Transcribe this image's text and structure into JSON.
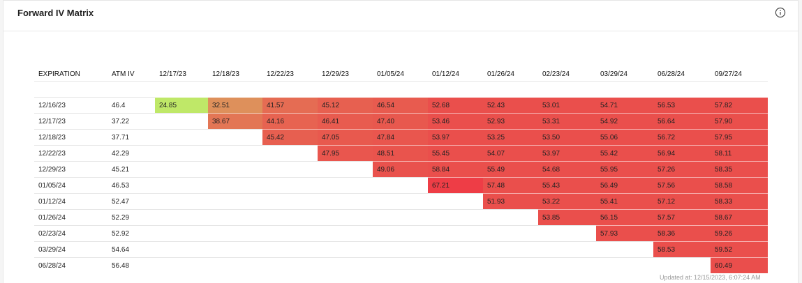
{
  "card": {
    "title": "Forward IV Matrix",
    "info_icon": "info-circle-icon"
  },
  "matrix": {
    "headers": {
      "expiration": "EXPIRATION",
      "atm_iv": "ATM IV",
      "dates": [
        "12/17/23",
        "12/18/23",
        "12/22/23",
        "12/29/23",
        "01/05/24",
        "01/12/24",
        "01/26/24",
        "02/23/24",
        "03/29/24",
        "06/28/24",
        "09/27/24"
      ]
    },
    "rows": [
      {
        "expiration": "12/16/23",
        "atm_iv": "46.4",
        "values": [
          "24.85",
          "32.51",
          "41.57",
          "45.12",
          "46.54",
          "52.68",
          "52.43",
          "53.01",
          "54.71",
          "56.53",
          "57.82"
        ]
      },
      {
        "expiration": "12/17/23",
        "atm_iv": "37.22",
        "values": [
          null,
          "38.67",
          "44.16",
          "46.41",
          "47.40",
          "53.46",
          "52.93",
          "53.31",
          "54.92",
          "56.64",
          "57.90"
        ]
      },
      {
        "expiration": "12/18/23",
        "atm_iv": "37.71",
        "values": [
          null,
          null,
          "45.42",
          "47.05",
          "47.84",
          "53.97",
          "53.25",
          "53.50",
          "55.06",
          "56.72",
          "57.95"
        ]
      },
      {
        "expiration": "12/22/23",
        "atm_iv": "42.29",
        "values": [
          null,
          null,
          null,
          "47.95",
          "48.51",
          "55.45",
          "54.07",
          "53.97",
          "55.42",
          "56.94",
          "58.11"
        ]
      },
      {
        "expiration": "12/29/23",
        "atm_iv": "45.21",
        "values": [
          null,
          null,
          null,
          null,
          "49.06",
          "58.84",
          "55.49",
          "54.68",
          "55.95",
          "57.26",
          "58.35"
        ]
      },
      {
        "expiration": "01/05/24",
        "atm_iv": "46.53",
        "values": [
          null,
          null,
          null,
          null,
          null,
          "67.21",
          "57.48",
          "55.43",
          "56.49",
          "57.56",
          "58.58"
        ]
      },
      {
        "expiration": "01/12/24",
        "atm_iv": "52.47",
        "values": [
          null,
          null,
          null,
          null,
          null,
          null,
          "51.93",
          "53.22",
          "55.41",
          "57.12",
          "58.33"
        ]
      },
      {
        "expiration": "01/26/24",
        "atm_iv": "52.29",
        "values": [
          null,
          null,
          null,
          null,
          null,
          null,
          null,
          "53.85",
          "56.15",
          "57.57",
          "58.67"
        ]
      },
      {
        "expiration": "02/23/24",
        "atm_iv": "52.92",
        "values": [
          null,
          null,
          null,
          null,
          null,
          null,
          null,
          null,
          "57.93",
          "58.36",
          "59.26"
        ]
      },
      {
        "expiration": "03/29/24",
        "atm_iv": "54.64",
        "values": [
          null,
          null,
          null,
          null,
          null,
          null,
          null,
          null,
          null,
          "58.53",
          "59.52"
        ]
      },
      {
        "expiration": "06/28/24",
        "atm_iv": "56.48",
        "values": [
          null,
          null,
          null,
          null,
          null,
          null,
          null,
          null,
          null,
          null,
          "60.49"
        ]
      }
    ],
    "color_scale": {
      "low": "#bfe868",
      "mid": "#e08a5a",
      "high": "#ea4f4c",
      "peak": "#ee3b45"
    }
  },
  "footer": {
    "updated_text": "Updated at: 12/15/2023, 6:07:24 AM"
  }
}
